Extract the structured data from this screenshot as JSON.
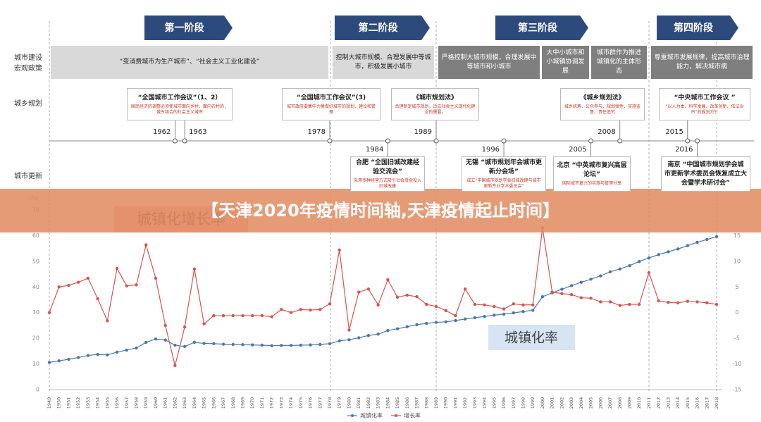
{
  "banner": "【天津2020年疫情时间轴,天津疫情起止时间】",
  "phases": [
    "第一阶段",
    "第二阶段",
    "第三阶段",
    "第四阶段"
  ],
  "row_labels": [
    [
      "城市建设",
      "宏观政策"
    ],
    [
      "城乡规划"
    ],
    [
      "城市更新"
    ]
  ],
  "policies": [
    "“变消费城市为生产城市”、“社会主义工业化建设”",
    "控制大城市规模、合理发展中等城市，积极发展小城市",
    "严格控制大城市规模，合理发展中等城市和小城市",
    "大中小城市和小城镇协调发展",
    "城市群作为推进城镇化的主体形态",
    "尊重城市发展规律，提高城市治理能力，解决城市病"
  ],
  "planning": [
    {
      "years": [
        1962,
        1963
      ],
      "title": "“全国城市工作会议”（1、2）",
      "detail": "国民经济的调整必须使城市面向乡村，面向农村的，城乡结合的社会主义城市"
    },
    {
      "years": [
        1978
      ],
      "title": "“全国城市工作会议”(3)",
      "detail": "城市政府要集中力量做好城市的规划、建设和管理"
    },
    {
      "years": [
        1989
      ],
      "title": "《城市规划法》",
      "detail": "合理制定城市规划，适应社会主义现代化建设的需要。"
    },
    {
      "years": [
        2008
      ],
      "title": "《城乡规划法》",
      "detail": "城乡统筹、公众参与、规划弹性、实施监督、责任追究"
    },
    {
      "years": [
        2015
      ],
      "title": "“中央城市工作会议 ”",
      "detail": "“以人为本、科学发展、改革创新、依法治市”的规划方针"
    }
  ],
  "renewal": [
    {
      "year": 1984,
      "title": "合肥 “全国旧城改建经验交流会”",
      "detail": "采用多种经营方式吸引社会资金投入旧城改建"
    },
    {
      "year": 1996,
      "title": "无锡 “城市规划年会城市更新分会场”",
      "detail": "成立“中国城市规划学会旧城改建与城市更新专业学术委员会”"
    },
    {
      "year": 2005,
      "title": "北京 “中英城市复兴高层论坛”",
      "detail": "国际城市复兴的实施与管理分享"
    },
    {
      "year": 2016,
      "title": "南京 “中国城市规划学会城市更新学术委员会恢复成立大会暨学术研讨会”",
      "detail": ""
    }
  ],
  "chart_data": {
    "type": "line",
    "ylabel": "(%)",
    "annotations": [
      "城镇化增长率",
      "城镇化率"
    ],
    "x": [
      1949,
      1950,
      1951,
      1952,
      1953,
      1954,
      1955,
      1956,
      1957,
      1958,
      1959,
      1960,
      1961,
      1962,
      1963,
      1964,
      1965,
      1966,
      1967,
      1968,
      1969,
      1970,
      1971,
      1972,
      1973,
      1974,
      1975,
      1976,
      1977,
      1978,
      1979,
      1980,
      1981,
      1982,
      1983,
      1984,
      1985,
      1986,
      1987,
      1988,
      1989,
      1990,
      1991,
      1992,
      1993,
      1994,
      1995,
      1996,
      1997,
      1998,
      1999,
      2000,
      2001,
      2002,
      2003,
      2004,
      2005,
      2006,
      2007,
      2008,
      2009,
      2010,
      2011,
      2012,
      2013,
      2014,
      2015,
      2016,
      2017,
      2018
    ],
    "xlim": [
      1949,
      2018
    ],
    "series": [
      {
        "name": "城镇化率",
        "color": "#4a78ad",
        "axis": "y",
        "values": [
          10.6,
          11.2,
          11.8,
          12.5,
          13.3,
          13.7,
          13.5,
          14.6,
          15.4,
          16.2,
          18.4,
          19.7,
          19.3,
          17.3,
          16.8,
          18.4,
          18.0,
          17.9,
          17.7,
          17.6,
          17.5,
          17.4,
          17.3,
          17.1,
          17.2,
          17.2,
          17.3,
          17.4,
          17.6,
          17.9,
          19.0,
          19.4,
          20.2,
          21.1,
          21.6,
          23.0,
          23.7,
          24.5,
          25.3,
          25.8,
          26.2,
          26.4,
          26.9,
          27.5,
          28.0,
          28.5,
          29.0,
          29.4,
          29.9,
          30.4,
          30.9,
          36.2,
          37.7,
          39.1,
          40.5,
          41.8,
          43.0,
          44.3,
          45.9,
          47.0,
          48.3,
          49.9,
          51.3,
          52.6,
          53.7,
          54.8,
          56.1,
          57.4,
          58.5,
          59.6
        ]
      },
      {
        "name": "增长率",
        "color": "#d9534f",
        "axis": "y2",
        "values": [
          0,
          5,
          5.3,
          5.9,
          6.7,
          2.7,
          -1.6,
          8.6,
          5.2,
          5.4,
          13.2,
          6.7,
          -2.5,
          -10.3,
          -2.8,
          8.5,
          -2.2,
          -0.6,
          -0.6,
          -0.6,
          -0.6,
          -0.6,
          -0.6,
          -0.8,
          0.6,
          0,
          0.6,
          0.5,
          0.6,
          1.7,
          12.2,
          -3.4,
          4,
          4.6,
          1.5,
          6.4,
          3,
          3.4,
          3.1,
          1.6,
          1.2,
          0.4,
          -0.6,
          4.6,
          1.6,
          1.5,
          1.2,
          0.7,
          1.7,
          1.5,
          1.5,
          16.5,
          4,
          3.7,
          3.5,
          2.9,
          2.8,
          2.1,
          2.1,
          1.4,
          1.6,
          1.6,
          7.8,
          2.3,
          2,
          1.9,
          2.2,
          2.1,
          1.9,
          1.6
        ]
      }
    ],
    "ylim": [
      0,
      70
    ],
    "yticks": [
      0,
      10,
      20,
      30,
      40,
      50,
      60,
      70
    ],
    "y2lim": [
      -15,
      20
    ],
    "y2ticks": [
      -15,
      -10,
      -5,
      0,
      5,
      10,
      15
    ],
    "grid": false
  }
}
